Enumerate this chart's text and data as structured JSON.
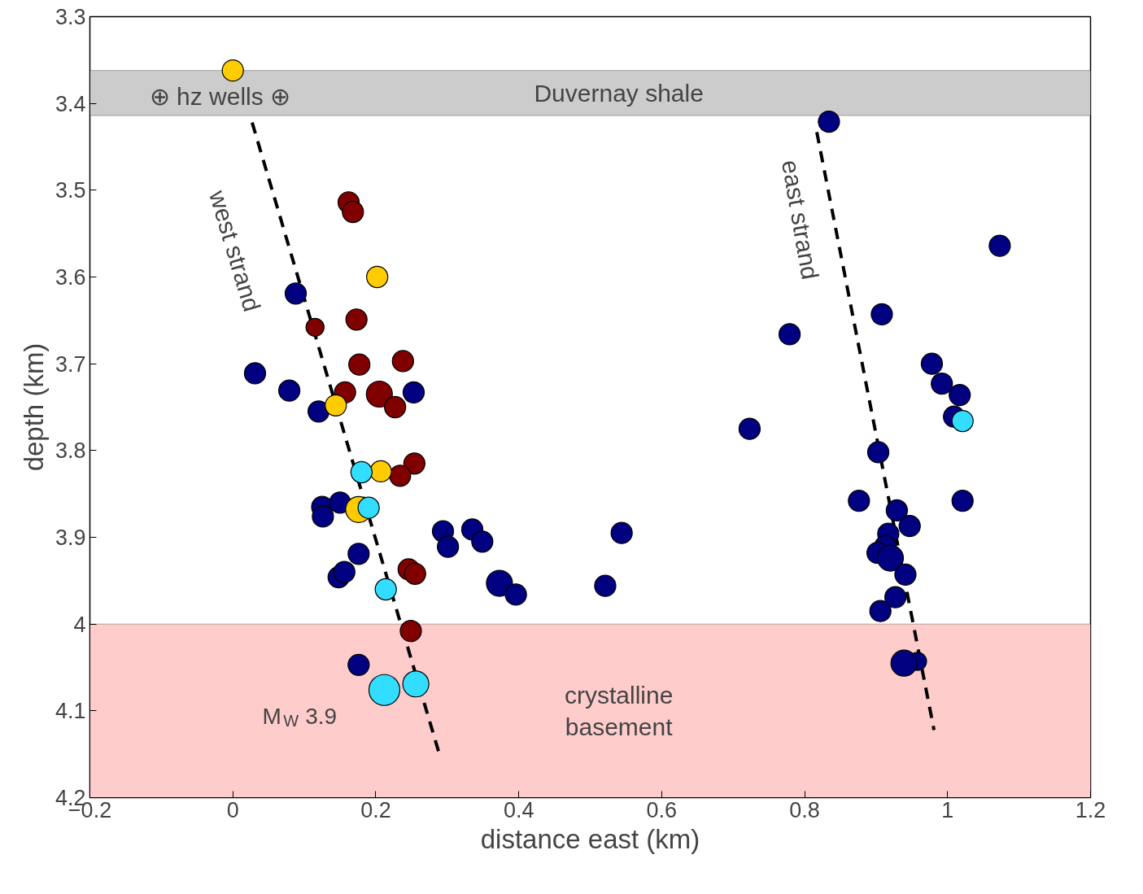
{
  "chart_data": {
    "type": "bubble",
    "xlabel": "distance east (km)",
    "ylabel": "depth (km)",
    "xlim": [
      -0.2,
      1.2
    ],
    "ylim": [
      4.2,
      3.3
    ],
    "xticks": [
      {
        "value": -0.2,
        "label": "−0.2"
      },
      0,
      0.2,
      0.4,
      0.6,
      0.8,
      1,
      1.2
    ],
    "yticks": [
      3.3,
      3.4,
      3.5,
      3.6,
      3.7,
      3.8,
      3.9,
      4,
      4.1,
      4.2
    ],
    "grid": false,
    "marker": "circle",
    "bands": [
      {
        "axis": "y",
        "from": 3.362,
        "to": 3.414,
        "label": "Duvernay shale",
        "color": "#cccccc"
      },
      {
        "axis": "y",
        "from": 4.0,
        "to": 4.2,
        "label": "crystalline\nbasement",
        "color": "#ffcccc"
      }
    ],
    "annotations": [
      "⊕ hz wells ⊕",
      "west strand",
      "east strand",
      {
        "text": "M$_{W}$ 3.9",
        "x": 0.212,
        "y": 4.076
      }
    ],
    "series": [
      {
        "type": "line",
        "color": "#000000",
        "line_style": "dashed",
        "marker": "none",
        "x": [
          0.027,
          0.289
        ],
        "values": [
          3.422,
          4.15
        ]
      },
      {
        "type": "line",
        "color": "#000000",
        "line_style": "dashed",
        "marker": "none",
        "x": [
          0.817,
          0.981
        ],
        "values": [
          3.433,
          4.122
        ]
      },
      {
        "color": "#000080",
        "x": [
          0.088,
          0.031,
          0.079,
          0.12,
          0.253,
          0.125,
          0.15,
          0.126,
          0.176,
          0.148,
          0.156,
          0.294,
          0.301,
          0.335,
          0.349,
          0.373,
          0.396,
          0.521,
          0.544,
          0.176,
          0.723,
          0.779,
          0.834,
          0.908,
          1.073,
          0.978,
          0.992,
          1.017,
          1.009,
          1.021,
          0.903,
          0.876,
          0.929,
          0.947,
          0.917,
          0.913,
          0.902,
          0.92,
          0.941,
          0.927,
          0.906,
          0.958,
          0.939
        ],
        "values": [
          3.619,
          3.711,
          3.731,
          3.755,
          3.733,
          3.865,
          3.86,
          3.876,
          3.919,
          3.946,
          3.94,
          3.893,
          3.911,
          3.891,
          3.905,
          3.953,
          3.966,
          3.956,
          3.895,
          4.047,
          3.775,
          3.666,
          3.421,
          3.643,
          3.564,
          3.7,
          3.723,
          3.736,
          3.761,
          3.858,
          3.802,
          3.858,
          3.869,
          3.887,
          3.896,
          3.91,
          3.918,
          3.924,
          3.943,
          3.969,
          3.985,
          4.043,
          4.045
        ],
        "sizes": [
          0.47,
          0.47,
          0.47,
          0.47,
          0.47,
          0.47,
          0.47,
          0.47,
          0.47,
          0.47,
          0.47,
          0.47,
          0.47,
          0.47,
          0.47,
          0.71,
          0.47,
          0.47,
          0.47,
          0.47,
          0.47,
          0.47,
          0.47,
          0.47,
          0.47,
          0.47,
          0.47,
          0.47,
          0.47,
          0.47,
          0.47,
          0.47,
          0.47,
          0.47,
          0.47,
          0.47,
          0.47,
          0.71,
          0.47,
          0.47,
          0.47,
          0.34,
          0.71
        ]
      },
      {
        "color": "#800000",
        "x": [
          0.162,
          0.168,
          0.173,
          0.115,
          0.177,
          0.238,
          0.157,
          0.205,
          0.227,
          0.254,
          0.234,
          0.246,
          0.255,
          0.249
        ],
        "values": [
          3.514,
          3.525,
          3.649,
          3.658,
          3.701,
          3.697,
          3.733,
          3.735,
          3.75,
          3.815,
          3.829,
          3.937,
          3.942,
          4.008
        ],
        "sizes": [
          0.47,
          0.47,
          0.47,
          0.34,
          0.47,
          0.47,
          0.47,
          0.71,
          0.47,
          0.47,
          0.47,
          0.47,
          0.47,
          0.47
        ]
      },
      {
        "color": "#ffcc00",
        "x": [
          0.0,
          0.202,
          0.144,
          0.207,
          0.176
        ],
        "values": [
          3.362,
          3.6,
          3.748,
          3.824,
          3.868
        ],
        "sizes": [
          0.47,
          0.47,
          0.47,
          0.47,
          0.71
        ]
      },
      {
        "color": "#33ddff",
        "x": [
          0.18,
          0.19,
          0.214,
          0.212,
          0.256,
          1.021
        ],
        "values": [
          3.825,
          3.866,
          3.96,
          4.076,
          4.069,
          3.766
        ],
        "sizes": [
          0.47,
          0.47,
          0.47,
          1.0,
          0.71,
          0.47
        ]
      }
    ]
  }
}
